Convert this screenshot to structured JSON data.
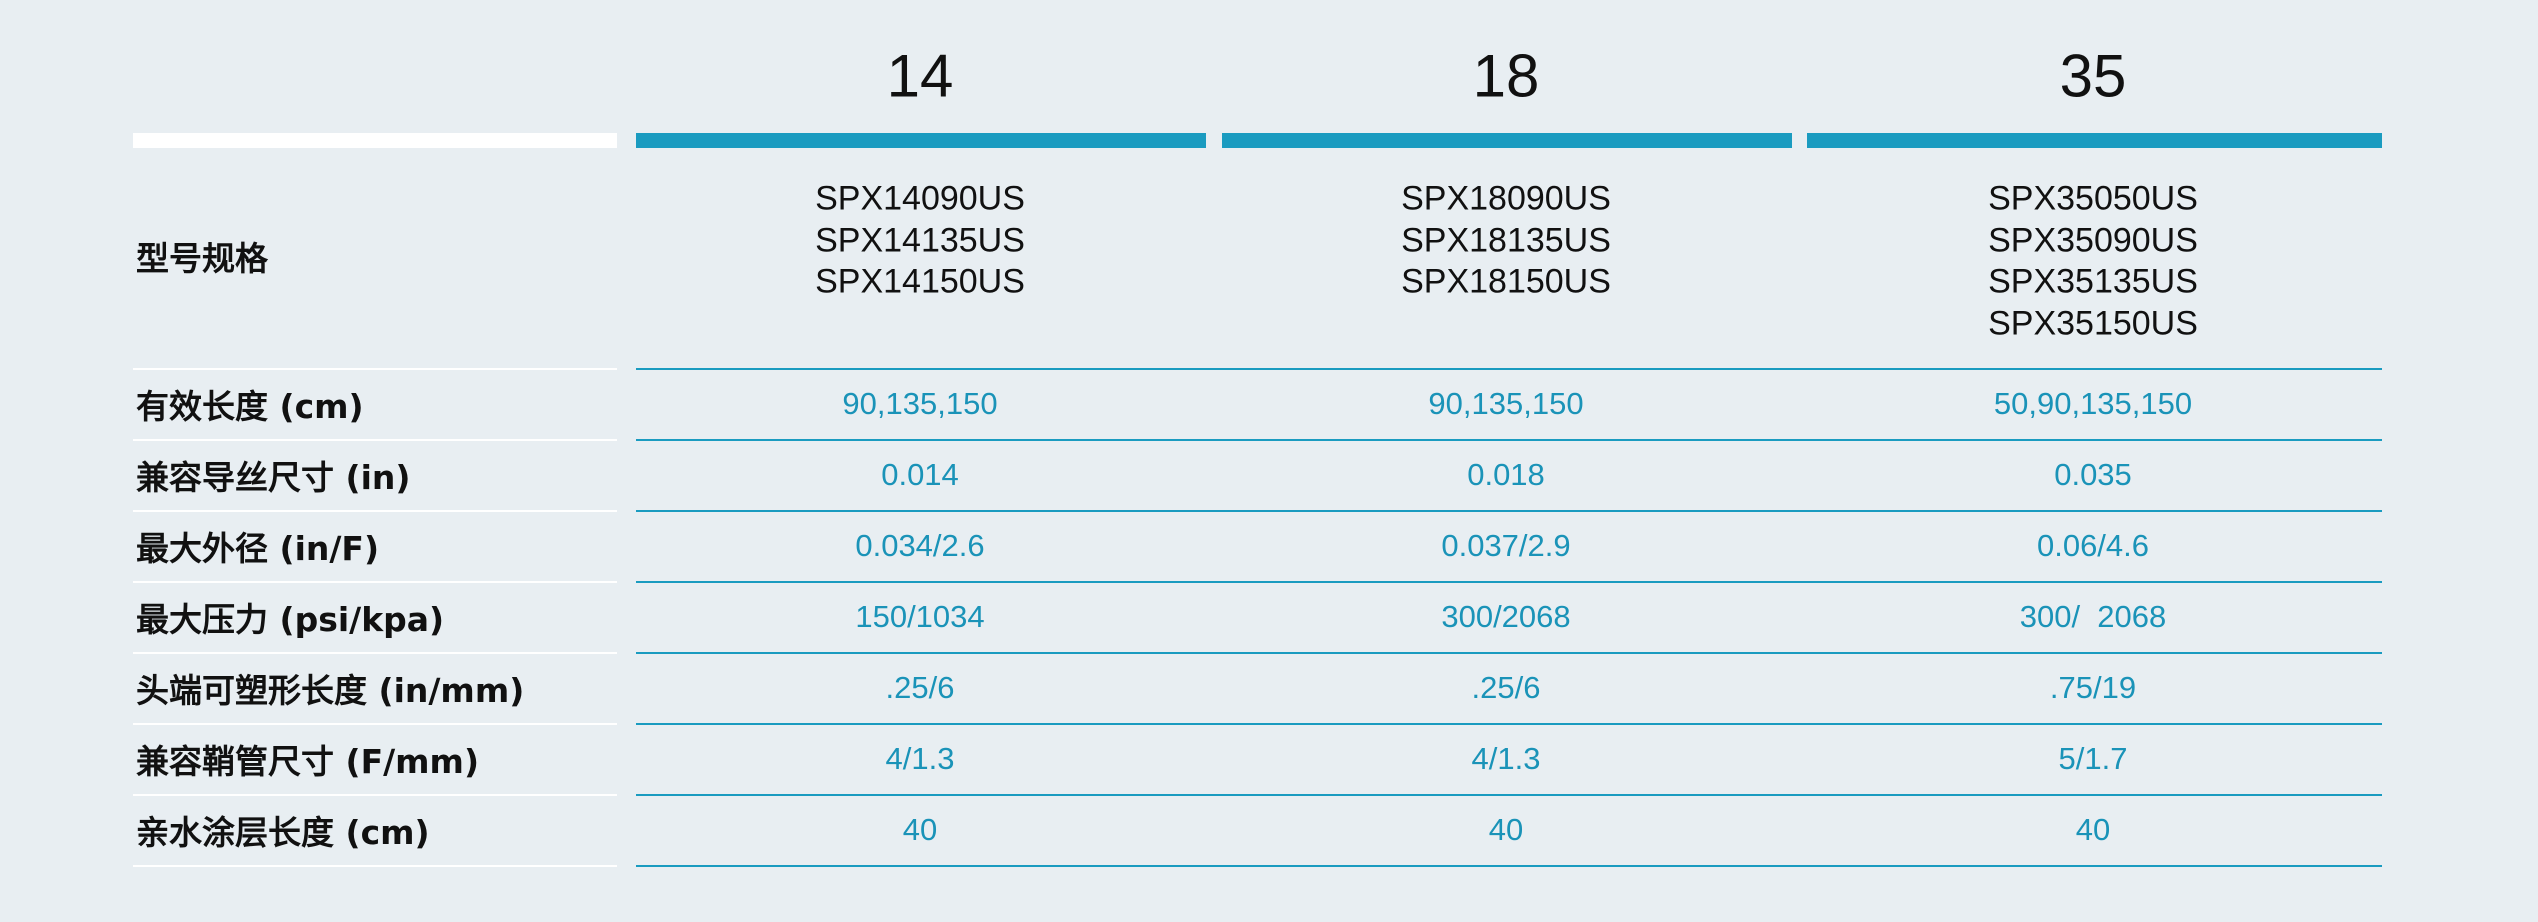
{
  "table": {
    "columns": [
      "14",
      "18",
      "35"
    ],
    "rows": [
      {
        "label": "型号规格",
        "values": [
          [
            "SPX14090US",
            "SPX14135US",
            "SPX14150US"
          ],
          [
            "SPX18090US",
            "SPX18135US",
            "SPX18150US"
          ],
          [
            "SPX35050US",
            "SPX35090US",
            "SPX35135US",
            "SPX35150US"
          ]
        ]
      },
      {
        "label": "有效长度 (cm)",
        "values": [
          "90,135,150",
          "90,135,150",
          "50,90,135,150"
        ]
      },
      {
        "label": "兼容导丝尺寸 (in)",
        "values": [
          "0.014",
          "0.018",
          "0.035"
        ]
      },
      {
        "label": "最大外径 (in/F)",
        "values": [
          "0.034/2.6",
          "0.037/2.9",
          "0.06/4.6"
        ]
      },
      {
        "label": "最大压力 (psi/kpa)",
        "values": [
          "150/1034",
          "300/2068",
          "300/  2068"
        ]
      },
      {
        "label": "头端可塑形长度 (in/mm)",
        "values": [
          ".25/6",
          ".25/6",
          ".75/19"
        ]
      },
      {
        "label": "兼容鞘管尺寸 (F/mm)",
        "values": [
          "4/1.3",
          "4/1.3",
          "5/1.7"
        ]
      },
      {
        "label": "亲水涂层长度 (cm)",
        "values": [
          "40",
          "40",
          "40"
        ]
      }
    ]
  }
}
